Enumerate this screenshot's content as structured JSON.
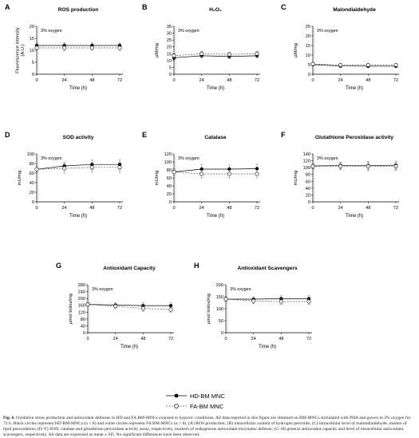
{
  "legend": {
    "hd_label": "HD-BM MNC",
    "fa_label": "FA-BM MNC"
  },
  "caption": {
    "label": "Fig. 6.",
    "text": "Oxidative stress production and antioxidant defenses in HD and FA BM-MNCs exposed to hypoxic conditions. All data reported in this figure are obtained on BM-MNCs stimulated with PHA and grown in 3% oxygen for 72 h. Black circles represent HD BM-MNCs (n = 8) and white circles represent FA BM-MNCs (n = 8). (A) ROS production; (B) intracellular content of hydrogen peroxide; (C) intracellular level of malondialdehyde, marker of lipid peroxidation; (D–F) SOD, catalase and glutathione peroxidase activity assay, respectively, markers of endogenous antioxidant enzymatic defense; (G–H) general antioxidant capacity and level of intracellular antioxidant scavengers, respectively. All data are expressed as mean ± SD. No significant differences have been observed."
  },
  "chart_data": [
    {
      "panel": "A",
      "type": "line",
      "title": "ROS production",
      "xlabel": "Time (h)",
      "ylabel": "Fluorescence intensity\n(A.U.)",
      "annotation": "3% oxygen",
      "x": [
        0,
        24,
        48,
        72
      ],
      "xlim": [
        0,
        72
      ],
      "xticks": [
        0,
        24,
        48,
        72
      ],
      "ylim": [
        0,
        20
      ],
      "yticks": [
        0,
        5,
        10,
        15,
        20
      ],
      "series": [
        {
          "name": "HD-BM MNC",
          "marker": "filled",
          "values": [
            12,
            12,
            12,
            12
          ],
          "err": [
            1.2,
            1.3,
            1.1,
            1.0
          ]
        },
        {
          "name": "FA-BM MNC",
          "marker": "open",
          "values": [
            11,
            11,
            11,
            11
          ],
          "err": [
            1.0,
            1.2,
            1.0,
            1.1
          ]
        }
      ]
    },
    {
      "panel": "B",
      "type": "line",
      "title": "H₂O₂",
      "xlabel": "Time (h)",
      "ylabel": "µM/mg",
      "annotation": "3% oxygen",
      "x": [
        0,
        24,
        48,
        72
      ],
      "xlim": [
        0,
        72
      ],
      "xticks": [
        0,
        24,
        48,
        72
      ],
      "ylim": [
        0,
        35
      ],
      "yticks": [
        0,
        5,
        10,
        15,
        20,
        25,
        30,
        35
      ],
      "series": [
        {
          "name": "HD-BM MNC",
          "marker": "filled",
          "values": [
            12,
            13.5,
            13,
            13.5
          ],
          "err": [
            1.5,
            1.5,
            1.5,
            1.5
          ]
        },
        {
          "name": "FA-BM MNC",
          "marker": "open",
          "values": [
            13.5,
            15,
            14.5,
            15
          ],
          "err": [
            1.5,
            1.8,
            1.5,
            1.8
          ]
        }
      ]
    },
    {
      "panel": "C",
      "type": "line",
      "title": "Malondialdehyde",
      "xlabel": "Time (h)",
      "ylabel": "µM/mg",
      "annotation": "3% oxygen",
      "x": [
        0,
        24,
        48,
        72
      ],
      "xlim": [
        0,
        72
      ],
      "xticks": [
        0,
        24,
        48,
        72
      ],
      "ylim": [
        0,
        25
      ],
      "yticks": [
        0,
        5,
        10,
        15,
        20,
        25
      ],
      "series": [
        {
          "name": "HD-BM MNC",
          "marker": "filled",
          "values": [
            5,
            4.3,
            4.2,
            4.2
          ],
          "err": [
            0.6,
            0.6,
            0.6,
            0.6
          ]
        },
        {
          "name": "FA-BM MNC",
          "marker": "open",
          "values": [
            5.3,
            4.8,
            4.8,
            4.8
          ],
          "err": [
            0.6,
            0.6,
            0.6,
            0.6
          ]
        }
      ]
    },
    {
      "panel": "D",
      "type": "line",
      "title": "SOD activity",
      "xlabel": "Time (h)",
      "ylabel": "mU/mg",
      "annotation": "3% oxygen",
      "x": [
        0,
        24,
        48,
        72
      ],
      "xlim": [
        0,
        72
      ],
      "xticks": [
        0,
        24,
        48,
        72
      ],
      "ylim": [
        0,
        100
      ],
      "yticks": [
        0,
        20,
        40,
        60,
        80,
        100
      ],
      "series": [
        {
          "name": "HD-BM MNC",
          "marker": "filled",
          "values": [
            68,
            75,
            78,
            78
          ],
          "err": [
            6,
            8,
            10,
            10
          ]
        },
        {
          "name": "FA-BM MNC",
          "marker": "open",
          "values": [
            68,
            70,
            72,
            72
          ],
          "err": [
            6,
            10,
            10,
            10
          ]
        }
      ]
    },
    {
      "panel": "E",
      "type": "line",
      "title": "Catalase",
      "xlabel": "Time (h)",
      "ylabel": "mU/mg",
      "annotation": "3% oxygen",
      "x": [
        0,
        24,
        48,
        72
      ],
      "xlim": [
        0,
        72
      ],
      "xticks": [
        0,
        24,
        48,
        72
      ],
      "ylim": [
        0,
        120
      ],
      "yticks": [
        0,
        20,
        40,
        60,
        80,
        100,
        120
      ],
      "series": [
        {
          "name": "HD-BM MNC",
          "marker": "filled",
          "values": [
            75,
            82,
            82,
            83
          ],
          "err": [
            8,
            12,
            10,
            12
          ]
        },
        {
          "name": "FA-BM MNC",
          "marker": "open",
          "values": [
            75,
            70,
            70,
            70
          ],
          "err": [
            8,
            10,
            10,
            10
          ]
        }
      ]
    },
    {
      "panel": "F",
      "type": "line",
      "title": "Glutathione Peroxidase activity",
      "xlabel": "Time (h)",
      "ylabel": "mU/mg",
      "annotation": "3% oxygen",
      "x": [
        0,
        24,
        48,
        72
      ],
      "xlim": [
        0,
        72
      ],
      "xticks": [
        0,
        24,
        48,
        72
      ],
      "ylim": [
        0,
        140
      ],
      "yticks": [
        0,
        20,
        40,
        60,
        80,
        100,
        120,
        140
      ],
      "series": [
        {
          "name": "HD-BM MNC",
          "marker": "filled",
          "values": [
            105,
            106,
            106,
            107
          ],
          "err": [
            8,
            10,
            12,
            12
          ]
        },
        {
          "name": "FA-BM MNC",
          "marker": "open",
          "values": [
            104,
            104,
            104,
            104
          ],
          "err": [
            8,
            10,
            12,
            12
          ]
        }
      ]
    },
    {
      "panel": "G",
      "type": "line",
      "title": "Antioxidant Capacity",
      "xlabel": "Time (h)",
      "ylabel": "µmol trolox/mg",
      "annotation": "3% oxygen",
      "x": [
        0,
        24,
        48,
        72
      ],
      "xlim": [
        0,
        72
      ],
      "xticks": [
        0,
        24,
        48,
        72
      ],
      "ylim": [
        0,
        280
      ],
      "yticks": [
        0,
        40,
        80,
        120,
        160,
        200,
        240,
        280
      ],
      "series": [
        {
          "name": "HD-BM MNC",
          "marker": "filled",
          "values": [
            165,
            162,
            158,
            158
          ],
          "err": [
            10,
            12,
            18,
            18
          ]
        },
        {
          "name": "FA-BM MNC",
          "marker": "open",
          "values": [
            165,
            155,
            142,
            135
          ],
          "err": [
            10,
            14,
            18,
            15
          ]
        }
      ]
    },
    {
      "panel": "H",
      "type": "line",
      "title": "Antioxidant Scavengers",
      "xlabel": "Time (h)",
      "ylabel": "µmol trolox/mg",
      "annotation": "3% oxygen",
      "x": [
        0,
        24,
        48,
        72
      ],
      "xlim": [
        0,
        72
      ],
      "xticks": [
        0,
        24,
        48,
        72
      ],
      "ylim": [
        0,
        200
      ],
      "yticks": [
        0,
        50,
        100,
        150,
        200
      ],
      "series": [
        {
          "name": "HD-BM MNC",
          "marker": "filled",
          "values": [
            140,
            140,
            142,
            142
          ],
          "err": [
            10,
            10,
            12,
            12
          ]
        },
        {
          "name": "FA-BM MNC",
          "marker": "open",
          "values": [
            140,
            133,
            130,
            130
          ],
          "err": [
            10,
            12,
            12,
            12
          ]
        }
      ]
    }
  ]
}
